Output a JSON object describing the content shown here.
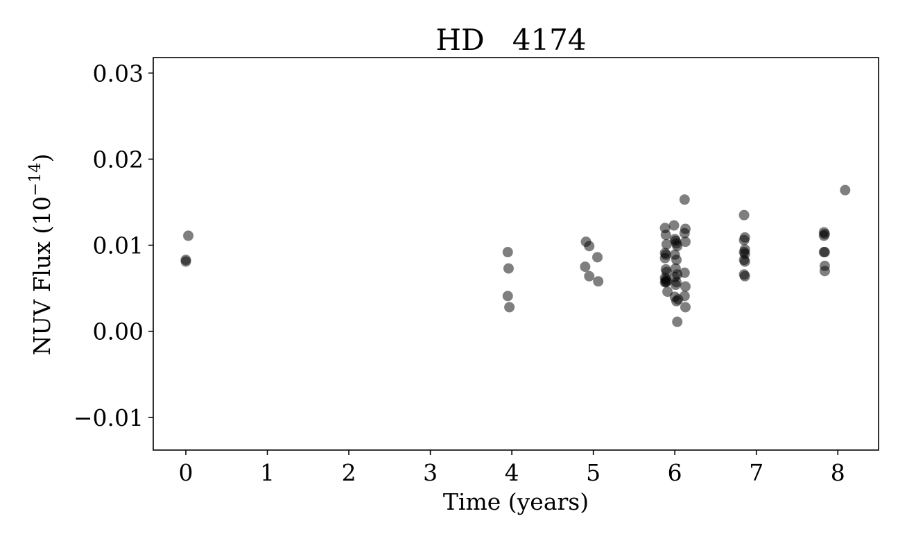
{
  "chart_data": {
    "type": "scatter",
    "title": "HD   4174",
    "xlabel": "Time (years)",
    "ylabel": "NUV Flux (10",
    "ylabel_exponent": "−14",
    "ylabel_close": ")",
    "xlim": [
      -0.4,
      8.5
    ],
    "ylim": [
      -0.0138,
      0.0318
    ],
    "xticks": [
      0,
      1,
      2,
      3,
      4,
      5,
      6,
      7,
      8
    ],
    "xtick_labels": [
      "0",
      "1",
      "2",
      "3",
      "4",
      "5",
      "6",
      "7",
      "8"
    ],
    "yticks": [
      -0.01,
      0.0,
      0.01,
      0.02,
      0.03
    ],
    "ytick_labels": [
      "−0.01",
      "0.00",
      "0.01",
      "0.02",
      "0.03"
    ],
    "grid": false,
    "marker_color": "#000000",
    "marker_alpha": 0.5,
    "series": [
      {
        "x": [
          0.0,
          0.0,
          0.03,
          3.95,
          3.96,
          3.95,
          3.97,
          4.91,
          4.95,
          5.05,
          4.9,
          4.95,
          5.06,
          5.88,
          5.89,
          5.9,
          5.88,
          5.89,
          5.88,
          5.89,
          5.9,
          5.88,
          5.89,
          5.9,
          5.88,
          5.89,
          5.91,
          5.99,
          6.0,
          6.01,
          6.02,
          6.03,
          6.0,
          6.02,
          6.01,
          6.03,
          6.0,
          6.02,
          6.01,
          6.04,
          6.0,
          6.02,
          6.03,
          6.12,
          6.13,
          6.12,
          6.13,
          6.12,
          6.13,
          6.12,
          6.13,
          6.85,
          6.86,
          6.85,
          6.86,
          6.85,
          6.86,
          6.85,
          6.86,
          6.85,
          6.86,
          7.83,
          7.84,
          7.83,
          7.84,
          7.83,
          7.84,
          7.84,
          8.09
        ],
        "y": [
          0.0083,
          0.0081,
          0.0111,
          0.0092,
          0.0073,
          0.0041,
          0.0028,
          0.0104,
          0.0099,
          0.0086,
          0.0075,
          0.0064,
          0.0058,
          0.012,
          0.0112,
          0.0101,
          0.0091,
          0.0089,
          0.0085,
          0.0072,
          0.0069,
          0.0062,
          0.006,
          0.0058,
          0.0057,
          0.0057,
          0.0046,
          0.0123,
          0.0107,
          0.0105,
          0.0102,
          0.0099,
          0.0089,
          0.0083,
          0.0073,
          0.0066,
          0.0063,
          0.0057,
          0.0054,
          0.0037,
          0.004,
          0.0035,
          0.0011,
          0.0153,
          0.0119,
          0.0114,
          0.0104,
          0.0068,
          0.0052,
          0.0041,
          0.0028,
          0.0135,
          0.0109,
          0.0106,
          0.0095,
          0.0092,
          0.009,
          0.0083,
          0.0081,
          0.0066,
          0.0064,
          0.0115,
          0.0113,
          0.0111,
          0.0092,
          0.0092,
          0.0076,
          0.007,
          0.0164
        ]
      }
    ]
  }
}
